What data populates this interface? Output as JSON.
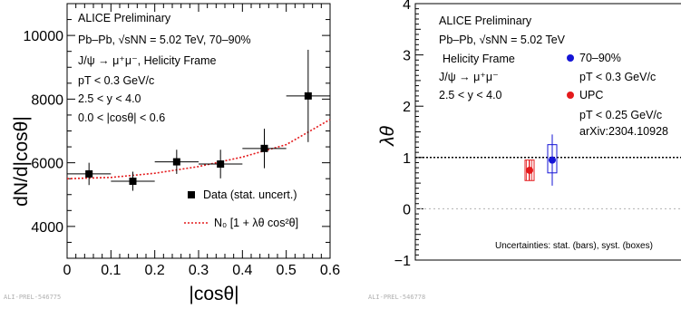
{
  "chart_data": [
    {
      "type": "scatter",
      "xlabel": "|cosθ|",
      "ylabel": "dN/d|cosθ|",
      "xlim": [
        0,
        0.6
      ],
      "ylim": [
        3000,
        11000
      ],
      "x_ticks": [
        "0",
        "0.1",
        "0.2",
        "0.3",
        "0.4",
        "0.5",
        "0.6"
      ],
      "y_ticks": [
        "4000",
        "6000",
        "8000",
        "10000"
      ],
      "annotations": [
        "ALICE Preliminary",
        "Pb–Pb, √sNN = 5.02 TeV, 70–90%",
        "J/ψ → μ⁺μ⁻, Helicity Frame",
        "pT < 0.3 GeV/c",
        "2.5 < y < 4.0",
        "0.0 < |cosθ| < 0.6"
      ],
      "legend_position": "bottom-right",
      "legend": [
        "Data (stat. uncert.)",
        "N₀ [1 + λθ cos²θ]"
      ],
      "series": [
        {
          "name": "Data (stat. uncert.)",
          "style": "markers-with-error-bars",
          "color": "#000000",
          "x": [
            0.05,
            0.15,
            0.25,
            0.35,
            0.45,
            0.55
          ],
          "x_halfwidth": [
            0.05,
            0.05,
            0.05,
            0.05,
            0.05,
            0.05
          ],
          "y": [
            5650,
            5420,
            6030,
            5960,
            6450,
            8100
          ],
          "y_err": [
            350,
            300,
            380,
            450,
            620,
            1450
          ]
        },
        {
          "name": "N₀ [1 + λθ cos²θ]",
          "style": "dotted-line",
          "color": "#e41a1c",
          "x": [
            0.0,
            0.1,
            0.2,
            0.3,
            0.4,
            0.5,
            0.6
          ],
          "y": [
            5500,
            5540,
            5670,
            5880,
            6180,
            6570,
            7360
          ]
        }
      ],
      "footer": "ALI-PREL-546775"
    },
    {
      "type": "scatter",
      "xlabel": "",
      "ylabel": "λθ",
      "ylim": [
        -1,
        4
      ],
      "y_ticks": [
        "−1",
        "0",
        "1",
        "2",
        "3",
        "4"
      ],
      "reference_lines": [
        {
          "y": 1,
          "style": "dotted",
          "color": "#000000"
        },
        {
          "y": 0,
          "style": "dotted",
          "color": "#b0b0b0"
        }
      ],
      "annotations": [
        "ALICE Preliminary",
        "Pb–Pb, √sNN = 5.02 TeV",
        "Helicity Frame",
        "J/ψ → μ⁺μ⁻",
        "2.5 < y < 4.0"
      ],
      "legend_position": "top-right",
      "legend": [
        "70–90%",
        "pT < 0.3 GeV/c",
        "UPC",
        "pT < 0.25 GeV/c",
        "arXiv:2304.10928"
      ],
      "series": [
        {
          "name": "UPC",
          "color": "#e41a1c",
          "y": 0.75,
          "stat_err": [
            0.2,
            0.2
          ],
          "syst_err": [
            0.2,
            0.2
          ],
          "syst_style": "hatched-box"
        },
        {
          "name": "70–90%",
          "color": "#1515d6",
          "y": 0.95,
          "stat_err": [
            0.5,
            0.5
          ],
          "syst_err": [
            0.25,
            0.3
          ],
          "syst_style": "open-box"
        }
      ],
      "note": "Uncertainties: stat. (bars), syst. (boxes)",
      "footer": "ALI-PREL-546778"
    }
  ]
}
